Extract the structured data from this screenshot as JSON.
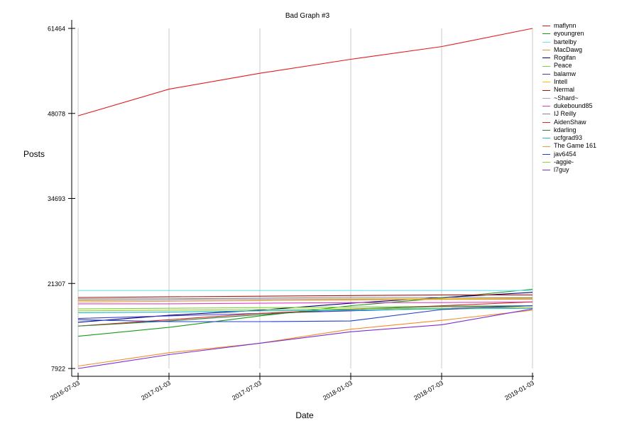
{
  "chart_data": {
    "type": "line",
    "title": "Bad Graph #3",
    "xlabel": "Date",
    "ylabel": "Posts",
    "x": [
      "2016-07-03",
      "2017-01-03",
      "2017-07-03",
      "2018-01-03",
      "2018-07-03",
      "2019-01-03"
    ],
    "x_tick_labels": [
      "2016-07-03",
      "2017-01-03",
      "2017-07-03",
      "2018-01-03",
      "2018-07-03",
      "2019-01-03"
    ],
    "y_ticks": [
      7922,
      21307,
      34693,
      48078,
      61464
    ],
    "ylim": [
      7922,
      61464
    ],
    "grid": "vertical",
    "legend_position": "right",
    "series": [
      {
        "name": "maflynn",
        "color": "#e41a1c",
        "values": [
          47700,
          51900,
          54400,
          56600,
          58600,
          61464
        ]
      },
      {
        "name": "eyoungren",
        "color": "#1a9a1a",
        "values": [
          13000,
          14400,
          16200,
          17800,
          19000,
          20400
        ]
      },
      {
        "name": "bartelby",
        "color": "#66e0f0",
        "values": [
          20200,
          20200,
          20200,
          20200,
          20200,
          20200
        ]
      },
      {
        "name": "MacDawg",
        "color": "#f28e2b",
        "values": [
          8300,
          10400,
          11900,
          14100,
          15500,
          17100
        ]
      },
      {
        "name": "Rogifan",
        "color": "#00007a",
        "values": [
          15200,
          16300,
          17100,
          18200,
          19100,
          19900
        ]
      },
      {
        "name": "Peace",
        "color": "#7cd33b",
        "values": [
          17300,
          17400,
          17500,
          17600,
          17700,
          17800
        ]
      },
      {
        "name": "balamw",
        "color": "#3b3bcc",
        "values": [
          15800,
          16200,
          16600,
          17000,
          17400,
          17800
        ]
      },
      {
        "name": "Intell",
        "color": "#f2c500",
        "values": [
          18600,
          18700,
          18800,
          18900,
          18900,
          19000
        ]
      },
      {
        "name": "Nermal",
        "color": "#a31515",
        "values": [
          19100,
          19200,
          19300,
          19400,
          19500,
          19500
        ]
      },
      {
        "name": "~Shard~",
        "color": "#b0a0d0",
        "values": [
          18700,
          18700,
          18800,
          18800,
          18800,
          18800
        ]
      },
      {
        "name": "dukebound85",
        "color": "#e040c0",
        "values": [
          18100,
          18100,
          18200,
          18300,
          18300,
          18400
        ]
      },
      {
        "name": "IJ Reilly",
        "color": "#888888",
        "values": [
          18900,
          18900,
          19000,
          19100,
          19100,
          19100
        ]
      },
      {
        "name": "AidenShaw",
        "color": "#d62728",
        "values": [
          14600,
          15600,
          16600,
          17200,
          17800,
          18400
        ]
      },
      {
        "name": "kdarling",
        "color": "#2e7d32",
        "values": [
          14600,
          15400,
          16400,
          17300,
          17700,
          17800
        ]
      },
      {
        "name": "ucfgrad93",
        "color": "#17becf",
        "values": [
          16700,
          16800,
          17000,
          17100,
          17300,
          17400
        ]
      },
      {
        "name": "The Game 161",
        "color": "#e6a23c",
        "values": [
          18400,
          18500,
          18600,
          18700,
          18800,
          18900
        ]
      },
      {
        "name": "jav6454",
        "color": "#1f3fd6",
        "values": [
          15600,
          15300,
          15300,
          15400,
          17200,
          17800
        ]
      },
      {
        "name": "-aggie-",
        "color": "#9bcc32",
        "values": [
          17000,
          17100,
          17200,
          17300,
          17400,
          17500
        ]
      },
      {
        "name": "l7guy",
        "color": "#7b2fd6",
        "values": [
          7922,
          10100,
          11900,
          13700,
          14800,
          17300
        ]
      }
    ]
  }
}
